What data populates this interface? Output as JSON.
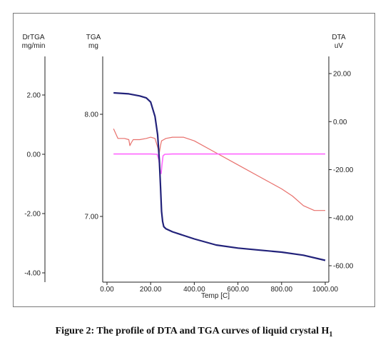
{
  "caption": {
    "text": "Figure 2: The profile of DTA and TGA curves of liquid crystal H",
    "subscript": "1"
  },
  "chart_data": {
    "type": "line",
    "xlabel": "Temp [C]",
    "xlim": [
      0,
      1000
    ],
    "xticks": [
      "0.00",
      "200.00",
      "400.00",
      "600.00",
      "800.00",
      "1000.00"
    ],
    "axes": {
      "drtga": {
        "label_line1": "DrTGA",
        "label_line2": "mg/min",
        "ticks": [
          "2.00",
          "0.00",
          "-2.00",
          "-4.00"
        ]
      },
      "tga": {
        "label_line1": "TGA",
        "label_line2": "mg",
        "ticks": [
          "8.00",
          "7.00"
        ]
      },
      "dta": {
        "label_line1": "DTA",
        "label_line2": "uV",
        "ticks": [
          "20.00",
          "0.00",
          "-20.00",
          "-40.00",
          "-60.00"
        ]
      }
    },
    "colors": {
      "TGA": "#22227a",
      "DTA": "#e8706c",
      "DrTGA": "#ff66ff"
    },
    "series": [
      {
        "key": "TGA",
        "axis": "tga",
        "color": "#22227a",
        "x": [
          30,
          100,
          150,
          180,
          200,
          220,
          232,
          240,
          245,
          250,
          255,
          260,
          270,
          300,
          400,
          500,
          600,
          700,
          800,
          900,
          1000
        ],
        "y": [
          8.21,
          8.2,
          8.18,
          8.16,
          8.12,
          7.98,
          7.8,
          7.55,
          7.3,
          7.05,
          6.95,
          6.9,
          6.88,
          6.85,
          6.78,
          6.72,
          6.69,
          6.67,
          6.65,
          6.62,
          6.57
        ]
      },
      {
        "key": "DTA",
        "axis": "dta",
        "color": "#e8706c",
        "x": [
          30,
          50,
          80,
          100,
          105,
          110,
          120,
          150,
          180,
          200,
          220,
          230,
          240,
          245,
          250,
          260,
          270,
          300,
          350,
          400,
          500,
          600,
          700,
          800,
          850,
          900,
          950,
          1000
        ],
        "y": [
          -3,
          -7,
          -7,
          -7.5,
          -10,
          -9,
          -7.5,
          -7.5,
          -7,
          -6.5,
          -7,
          -10,
          -13,
          -10,
          -8,
          -7.5,
          -7,
          -6.5,
          -6.5,
          -8,
          -13,
          -18,
          -23,
          -28,
          -31,
          -35,
          -37,
          -37
        ]
      },
      {
        "key": "DrTGA",
        "axis": "drtga",
        "color": "#ff66ff",
        "x": [
          30,
          200,
          230,
          238,
          243,
          248,
          252,
          257,
          265,
          300,
          1000
        ],
        "y": [
          0.01,
          0.01,
          0.0,
          -0.2,
          -0.55,
          -0.65,
          -0.35,
          -0.05,
          0.0,
          0.01,
          0.01
        ]
      }
    ]
  }
}
